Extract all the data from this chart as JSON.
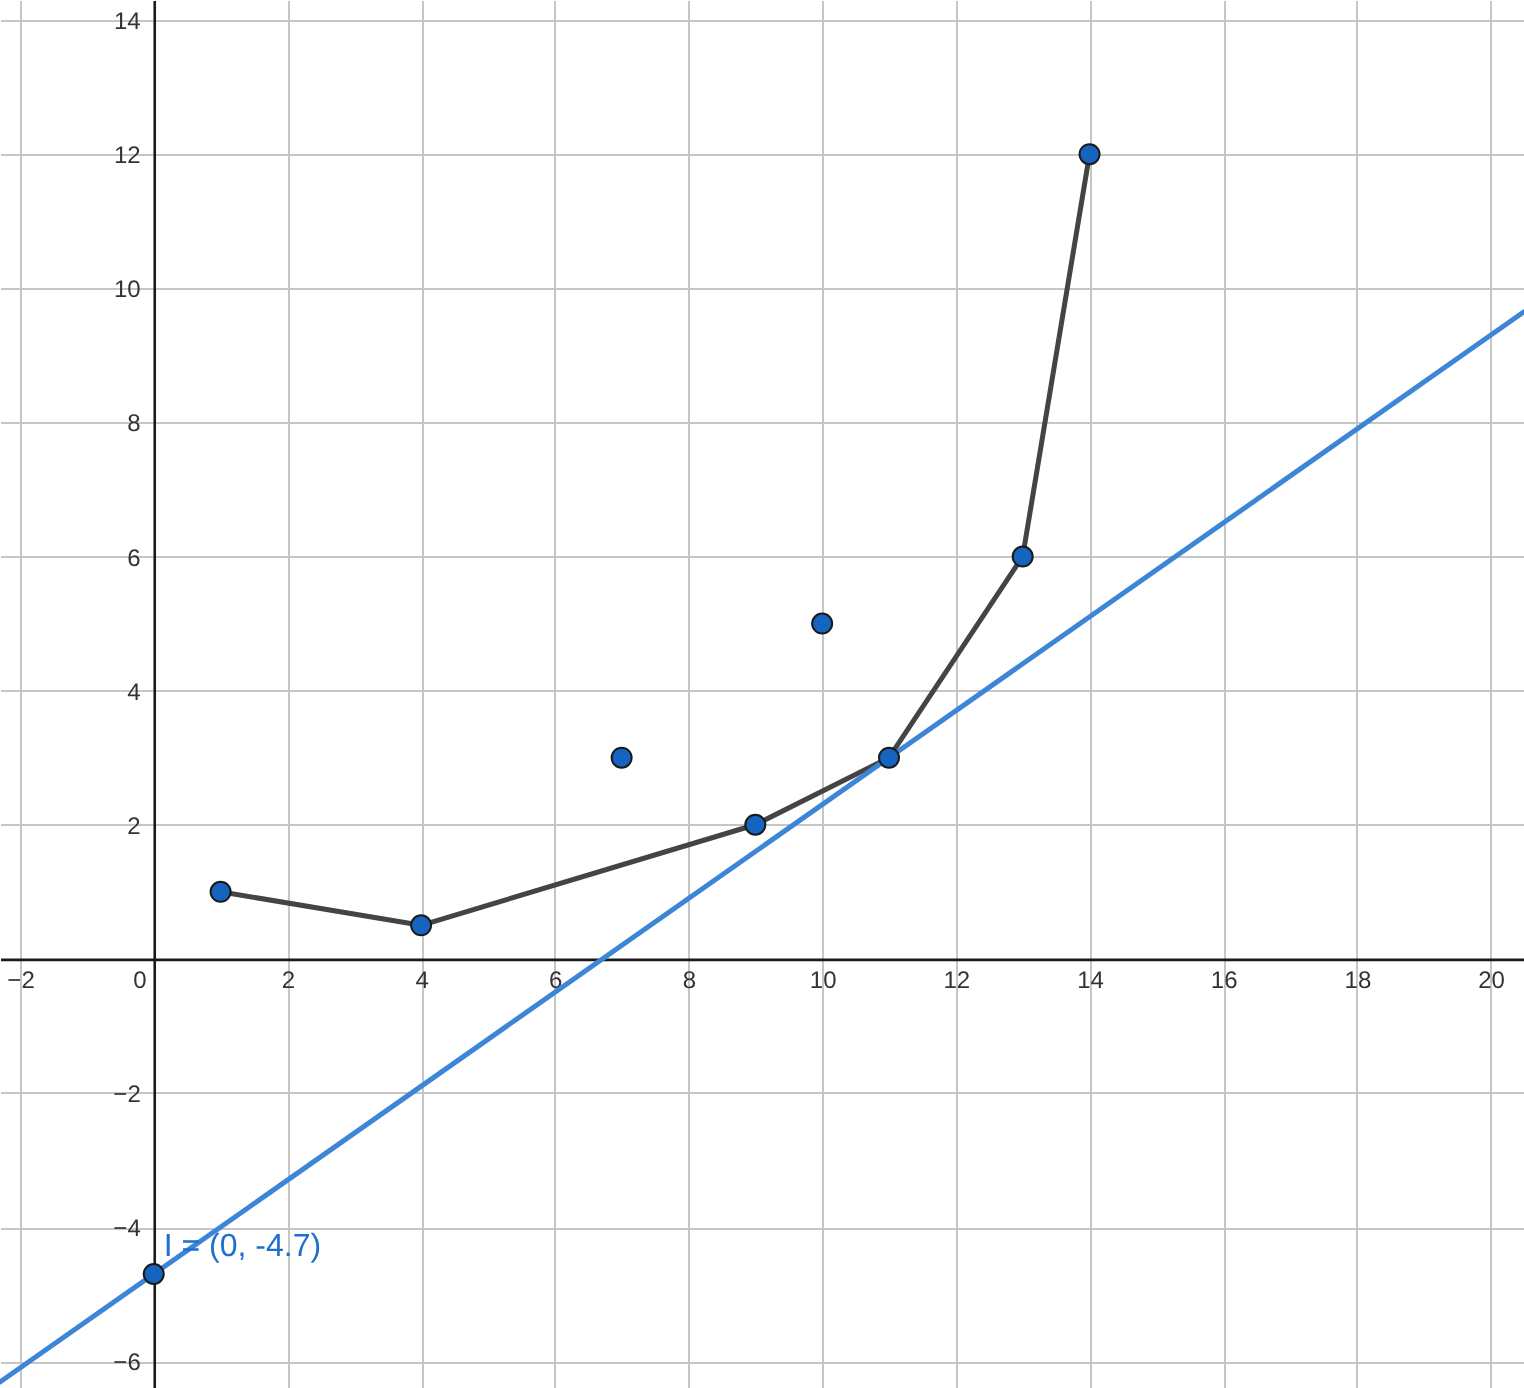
{
  "chart_data": {
    "type": "scatter",
    "xlim": [
      -2.3,
      20.5
    ],
    "ylim": [
      -6.4,
      14.3
    ],
    "xticks": [
      -2,
      0,
      2,
      4,
      6,
      8,
      10,
      12,
      14,
      16,
      18,
      20
    ],
    "yticks": [
      -6,
      -4,
      -2,
      2,
      4,
      6,
      8,
      10,
      12,
      14
    ],
    "grid": true,
    "series": [
      {
        "type": "line",
        "color": "#444444",
        "marker": "none",
        "x": [
          1,
          4,
          9,
          11,
          13,
          14
        ],
        "values": [
          1,
          0.5,
          2,
          3,
          6,
          12
        ]
      },
      {
        "type": "line",
        "color": "#3d85d6",
        "marker": "none",
        "x": [
          -2.3,
          20.5
        ],
        "values": [
          -6.31,
          9.65
        ]
      },
      {
        "type": "scatter",
        "color": "#1565c0",
        "marker": "circle",
        "x": [
          1,
          4,
          7,
          9,
          10,
          11,
          13,
          14
        ],
        "values": [
          1,
          0.5,
          3,
          2,
          5,
          3,
          6,
          12
        ]
      },
      {
        "type": "scatter",
        "color": "#1565c0",
        "marker": "circle",
        "x": [
          0
        ],
        "values": [
          -4.7
        ]
      }
    ],
    "annotations": [
      {
        "text": "I = (0, -4.7)",
        "x": 0,
        "y": -4.7
      }
    ]
  }
}
